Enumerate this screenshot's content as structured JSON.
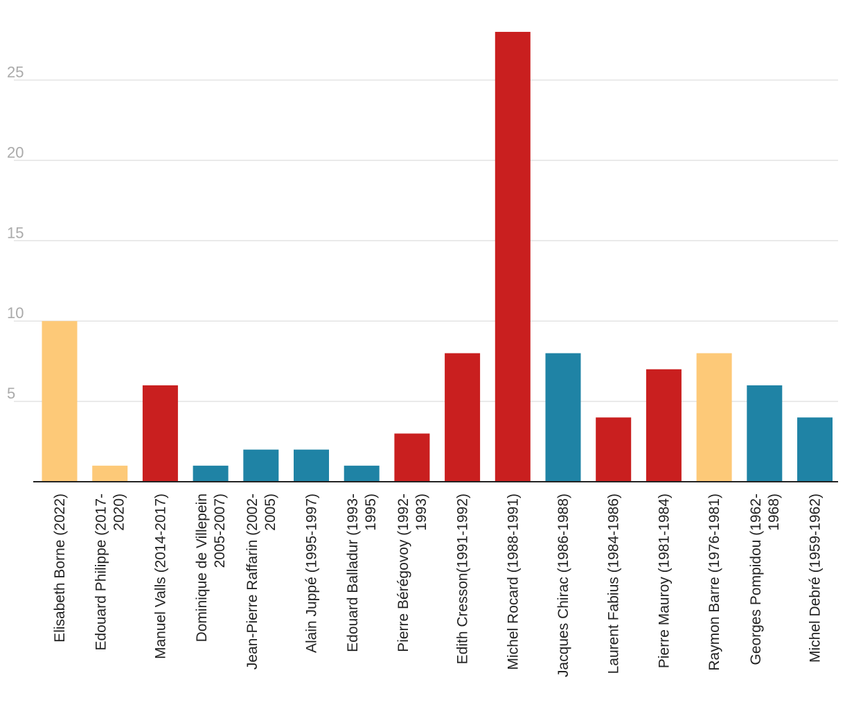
{
  "chart_data": {
    "type": "bar",
    "title": "",
    "xlabel": "",
    "ylabel": "",
    "ylim": [
      0,
      28
    ],
    "yticks": [
      5,
      10,
      15,
      20,
      25
    ],
    "grid": true,
    "legend": "none",
    "colors": {
      "yellow": "#fdc978",
      "red": "#c91f1f",
      "blue": "#1f83a5",
      "grid": "#e3e3e3",
      "axis": "#222222",
      "tick_text": "#aaaaaa",
      "label_text": "#222222"
    },
    "bars": [
      {
        "label": [
          "Elisabeth Borne (2022)"
        ],
        "value": 10,
        "color": "yellow"
      },
      {
        "label": [
          "Edouard Philippe (2017-",
          "2020)"
        ],
        "value": 1,
        "color": "yellow"
      },
      {
        "label": [
          "Manuel Valls (2014-2017)"
        ],
        "value": 6,
        "color": "red"
      },
      {
        "label": [
          "Dominique de Villepein",
          "2005-2007)"
        ],
        "value": 1,
        "color": "blue"
      },
      {
        "label": [
          "Jean-Pierre Raffarin (2002-",
          "2005)"
        ],
        "value": 2,
        "color": "blue"
      },
      {
        "label": [
          "Alain Juppé (1995-1997)"
        ],
        "value": 2,
        "color": "blue"
      },
      {
        "label": [
          "Edouard Balladur (1993-",
          "1995)"
        ],
        "value": 1,
        "color": "blue"
      },
      {
        "label": [
          "Pierre Bérégovoy (1992-",
          "1993)"
        ],
        "value": 3,
        "color": "red"
      },
      {
        "label": [
          "Edith Cresson(1991-1992)"
        ],
        "value": 8,
        "color": "red"
      },
      {
        "label": [
          "Michel Rocard (1988-1991)"
        ],
        "value": 28,
        "color": "red"
      },
      {
        "label": [
          "Jacques Chirac (1986-1988)"
        ],
        "value": 8,
        "color": "blue"
      },
      {
        "label": [
          "Laurent Fabius (1984-1986)"
        ],
        "value": 4,
        "color": "red"
      },
      {
        "label": [
          "Pierre Mauroy (1981-1984)"
        ],
        "value": 7,
        "color": "red"
      },
      {
        "label": [
          "Raymon Barre (1976-1981)"
        ],
        "value": 8,
        "color": "yellow"
      },
      {
        "label": [
          "Georges Pompidou (1962-",
          "1968)"
        ],
        "value": 6,
        "color": "blue"
      },
      {
        "label": [
          "Michel Debré (1959-1962)"
        ],
        "value": 4,
        "color": "blue"
      }
    ]
  }
}
